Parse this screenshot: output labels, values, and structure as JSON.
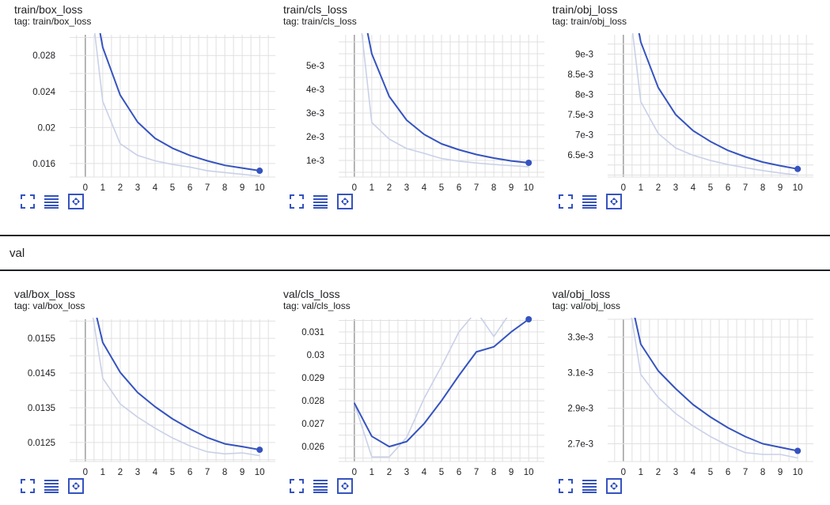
{
  "group": {
    "label": "val"
  },
  "chart_data": [
    {
      "type": "line",
      "title": "train/box_loss",
      "tag": "tag: train/box_loss",
      "x": [
        0,
        1,
        2,
        3,
        4,
        5,
        6,
        7,
        8,
        9,
        10
      ],
      "xticks": [
        "0",
        "1",
        "2",
        "3",
        "4",
        "5",
        "6",
        "7",
        "8",
        "9",
        "10"
      ],
      "xlim": [
        -0.9,
        10.9
      ],
      "ylim": [
        0.0145,
        0.0303
      ],
      "yticks": [
        0.016,
        0.02,
        0.024,
        0.028
      ],
      "ytick_labels": [
        "0.016",
        "0.02",
        "0.024",
        "0.028"
      ],
      "series": [
        {
          "role": "smoothed",
          "color": "#3553c0",
          "values": [
            0.0395,
            0.0289,
            0.0236,
            0.0206,
            0.0188,
            0.0177,
            0.0169,
            0.0163,
            0.0158,
            0.0155,
            0.0152
          ]
        },
        {
          "role": "raw",
          "color": "#c9d1e8",
          "values": [
            0.0395,
            0.0229,
            0.0182,
            0.0169,
            0.0163,
            0.0159,
            0.0156,
            0.0152,
            0.015,
            0.0148,
            0.0146
          ]
        }
      ]
    },
    {
      "type": "line",
      "title": "train/cls_loss",
      "tag": "tag: train/cls_loss",
      "x": [
        0,
        1,
        2,
        3,
        4,
        5,
        6,
        7,
        8,
        9,
        10
      ],
      "xticks": [
        "0",
        "1",
        "2",
        "3",
        "4",
        "5",
        "6",
        "7",
        "8",
        "9",
        "10"
      ],
      "xlim": [
        -0.9,
        10.9
      ],
      "ylim": [
        0.0003,
        0.0063
      ],
      "yticks": [
        0.001,
        0.002,
        0.003,
        0.004,
        0.005
      ],
      "ytick_labels": [
        "1e-3",
        "2e-3",
        "3e-3",
        "4e-3",
        "5e-3"
      ],
      "series": [
        {
          "role": "smoothed",
          "color": "#3553c0",
          "values": [
            0.0092,
            0.0055,
            0.0037,
            0.0027,
            0.0021,
            0.0017,
            0.00145,
            0.00125,
            0.0011,
            0.00098,
            0.0009
          ]
        },
        {
          "role": "raw",
          "color": "#c9d1e8",
          "values": [
            0.0092,
            0.0026,
            0.0019,
            0.0015,
            0.0013,
            0.00108,
            0.00097,
            0.00089,
            0.00083,
            0.00078,
            0.00073
          ]
        }
      ]
    },
    {
      "type": "line",
      "title": "train/obj_loss",
      "tag": "tag: train/obj_loss",
      "x": [
        0,
        1,
        2,
        3,
        4,
        5,
        6,
        7,
        8,
        9,
        10
      ],
      "xticks": [
        "0",
        "1",
        "2",
        "3",
        "4",
        "5",
        "6",
        "7",
        "8",
        "9",
        "10"
      ],
      "xlim": [
        -0.9,
        10.9
      ],
      "ylim": [
        0.00595,
        0.00948
      ],
      "yticks": [
        0.0065,
        0.007,
        0.0075,
        0.008,
        0.0085,
        0.009
      ],
      "ytick_labels": [
        "6.5e-3",
        "7e-3",
        "7.5e-3",
        "8e-3",
        "8.5e-3",
        "9e-3"
      ],
      "series": [
        {
          "role": "smoothed",
          "color": "#3553c0",
          "values": [
            0.0115,
            0.0093,
            0.00817,
            0.0075,
            0.0071,
            0.00683,
            0.00661,
            0.00645,
            0.00632,
            0.00623,
            0.00615
          ]
        },
        {
          "role": "raw",
          "color": "#c9d1e8",
          "values": [
            0.0115,
            0.00782,
            0.00703,
            0.00667,
            0.00649,
            0.00636,
            0.00626,
            0.00618,
            0.00611,
            0.00605,
            0.006
          ]
        }
      ]
    },
    {
      "type": "line",
      "title": "val/box_loss",
      "tag": "tag: val/box_loss",
      "x": [
        0,
        1,
        2,
        3,
        4,
        5,
        6,
        7,
        8,
        9,
        10
      ],
      "xticks": [
        "0",
        "1",
        "2",
        "3",
        "4",
        "5",
        "6",
        "7",
        "8",
        "9",
        "10"
      ],
      "xlim": [
        -0.9,
        10.9
      ],
      "ylim": [
        0.01195,
        0.01605
      ],
      "yticks": [
        0.0125,
        0.0135,
        0.0145,
        0.0155
      ],
      "ytick_labels": [
        "0.0125",
        "0.0135",
        "0.0145",
        "0.0155"
      ],
      "series": [
        {
          "role": "smoothed",
          "color": "#3553c0",
          "values": [
            0.0175,
            0.01538,
            0.01452,
            0.01394,
            0.01353,
            0.01318,
            0.01289,
            0.01264,
            0.01246,
            0.01238,
            0.01229
          ]
        },
        {
          "role": "raw",
          "color": "#c9d1e8",
          "values": [
            0.0175,
            0.01435,
            0.01361,
            0.01323,
            0.01291,
            0.01263,
            0.0124,
            0.01223,
            0.01217,
            0.0122,
            0.01212
          ]
        }
      ]
    },
    {
      "type": "line",
      "title": "val/cls_loss",
      "tag": "tag: val/cls_loss",
      "x": [
        0,
        1,
        2,
        3,
        4,
        5,
        6,
        7,
        8,
        9,
        10
      ],
      "xticks": [
        "0",
        "1",
        "2",
        "3",
        "4",
        "5",
        "6",
        "7",
        "8",
        "9",
        "10"
      ],
      "xlim": [
        -0.9,
        10.9
      ],
      "ylim": [
        0.02535,
        0.03155
      ],
      "yticks": [
        0.026,
        0.027,
        0.028,
        0.029,
        0.03,
        0.031
      ],
      "ytick_labels": [
        "0.026",
        "0.027",
        "0.028",
        "0.029",
        "0.03",
        "0.031"
      ],
      "series": [
        {
          "role": "smoothed",
          "color": "#3553c0",
          "values": [
            0.0279,
            0.02645,
            0.026,
            0.02622,
            0.027,
            0.028,
            0.0291,
            0.03013,
            0.03035,
            0.031,
            0.03155
          ]
        },
        {
          "role": "raw",
          "color": "#c9d1e8",
          "values": [
            0.0279,
            0.02555,
            0.02555,
            0.0264,
            0.0281,
            0.0295,
            0.031,
            0.0319,
            0.0308,
            0.0319,
            0.0329
          ]
        }
      ]
    },
    {
      "type": "line",
      "title": "val/obj_loss",
      "tag": "tag: val/obj_loss",
      "x": [
        0,
        1,
        2,
        3,
        4,
        5,
        6,
        7,
        8,
        9,
        10
      ],
      "xticks": [
        "0",
        "1",
        "2",
        "3",
        "4",
        "5",
        "6",
        "7",
        "8",
        "9",
        "10"
      ],
      "xlim": [
        -0.9,
        10.9
      ],
      "ylim": [
        0.0026,
        0.0034
      ],
      "yticks": [
        0.0027,
        0.0029,
        0.0031,
        0.0033
      ],
      "ytick_labels": [
        "2.7e-3",
        "2.9e-3",
        "3.1e-3",
        "3.3e-3"
      ],
      "series": [
        {
          "role": "smoothed",
          "color": "#3553c0",
          "values": [
            0.0037,
            0.00326,
            0.00311,
            0.00301,
            0.00292,
            0.00285,
            0.00279,
            0.00274,
            0.0027,
            0.00268,
            0.00266
          ]
        },
        {
          "role": "raw",
          "color": "#c9d1e8",
          "values": [
            0.0037,
            0.00309,
            0.00296,
            0.00287,
            0.0028,
            0.00274,
            0.00269,
            0.00265,
            0.00264,
            0.00264,
            0.00262
          ]
        }
      ]
    }
  ]
}
